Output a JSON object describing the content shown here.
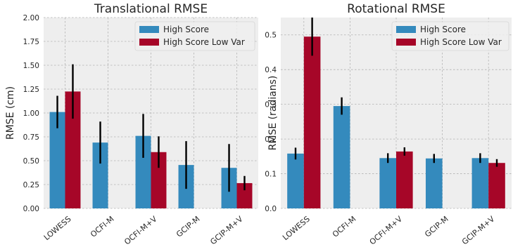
{
  "colors": {
    "s1": "#348ABD",
    "s2": "#A60628",
    "axes_bg": "#EEEEEE",
    "grid": "#B2B2B2",
    "err": "#000000"
  },
  "chart_data": [
    {
      "type": "bar",
      "title": "Translational RMSE",
      "ylabel": "RMSE (cm)",
      "xlabel": "",
      "ylim": [
        0,
        2.0
      ],
      "yticks": [
        "0.00",
        "0.25",
        "0.50",
        "0.75",
        "1.00",
        "1.25",
        "1.50",
        "1.75",
        "2.00"
      ],
      "categories": [
        "LOWESS",
        "OCFI-M",
        "OCFI-M+V",
        "GCIP-M",
        "GCIP-M+V"
      ],
      "legend_position": "top-right",
      "grid": true,
      "series": [
        {
          "name": "High Score",
          "color": "#348ABD",
          "values": [
            1.01,
            0.69,
            0.76,
            0.455,
            0.425
          ],
          "errors": [
            0.17,
            0.22,
            0.23,
            0.25,
            0.25
          ]
        },
        {
          "name": "High Score Low Var",
          "color": "#A60628",
          "values": [
            1.225,
            null,
            0.59,
            null,
            0.265
          ],
          "errors": [
            0.285,
            null,
            0.165,
            null,
            0.075
          ]
        }
      ]
    },
    {
      "type": "bar",
      "title": "Rotational RMSE",
      "ylabel": "RMSE (radians)",
      "xlabel": "",
      "ylim": [
        0,
        0.55
      ],
      "yticks": [
        "0.0",
        "0.1",
        "0.2",
        "0.3",
        "0.4",
        "0.5"
      ],
      "categories": [
        "LOWESS",
        "OCFI-M",
        "OCFI-M+V",
        "GCIP-M",
        "GCIP-M+V"
      ],
      "legend_position": "top-right",
      "grid": true,
      "series": [
        {
          "name": "High Score",
          "color": "#348ABD",
          "values": [
            0.158,
            0.295,
            0.145,
            0.144,
            0.145
          ],
          "errors": [
            0.017,
            0.025,
            0.014,
            0.013,
            0.014
          ]
        },
        {
          "name": "High Score Low Var",
          "color": "#A60628",
          "values": [
            0.495,
            null,
            0.164,
            null,
            0.131
          ],
          "errors": [
            0.055,
            null,
            0.012,
            null,
            0.011
          ]
        }
      ]
    }
  ]
}
